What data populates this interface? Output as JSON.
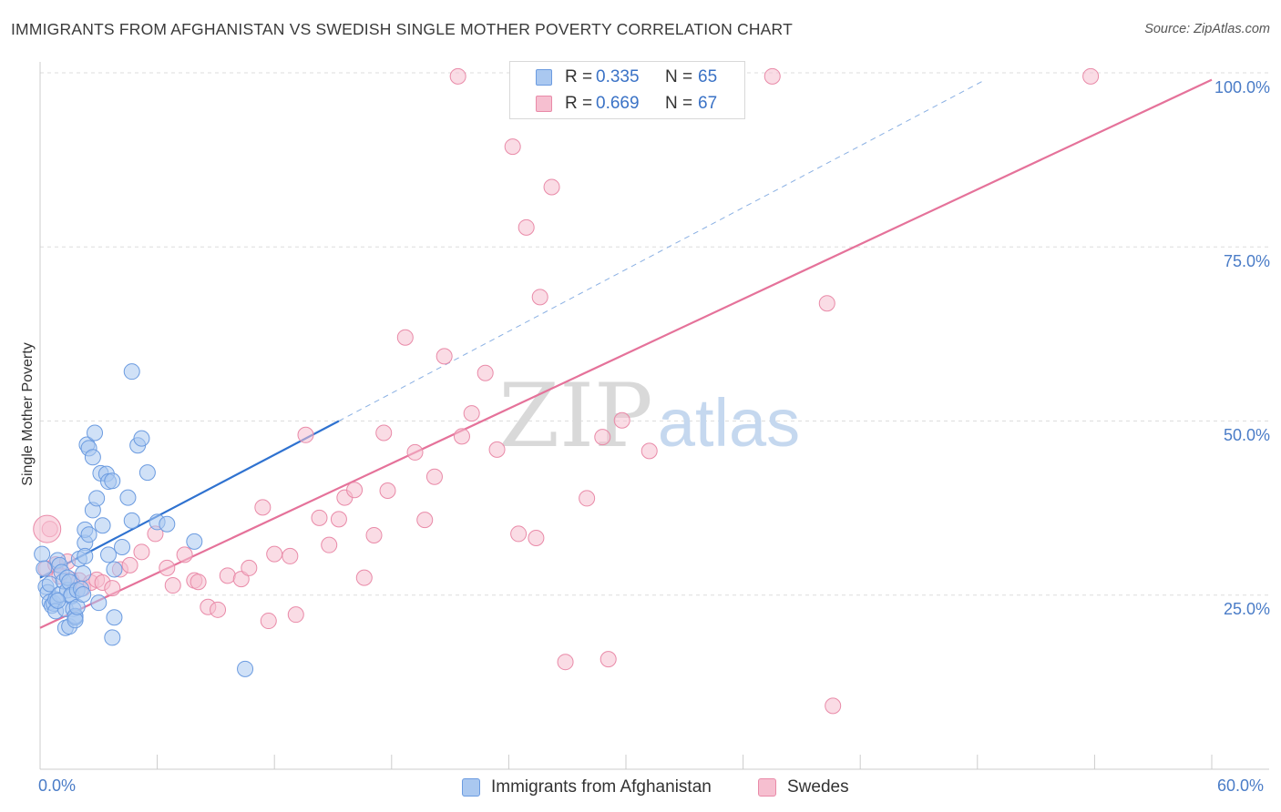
{
  "title": "IMMIGRANTS FROM AFGHANISTAN VS SWEDISH SINGLE MOTHER POVERTY CORRELATION CHART",
  "source": "Source: ZipAtlas.com",
  "watermark": {
    "zip": "ZIP",
    "atlas": "atlas"
  },
  "legend_top": [
    {
      "r_label": "R =",
      "r_value": "0.335",
      "n_label": "N =",
      "n_value": "65"
    },
    {
      "r_label": "R =",
      "r_value": "0.669",
      "n_label": "N =",
      "n_value": "67"
    }
  ],
  "legend_bottom": [
    {
      "label": "Immigrants from Afghanistan"
    },
    {
      "label": "Swedes"
    }
  ],
  "colors": {
    "blue_fill": "#aac8f0",
    "blue_stroke": "#6b9be0",
    "blue_line": "#2f72d0",
    "pink_fill": "#f6bfd0",
    "pink_stroke": "#e98aa8",
    "pink_line": "#e5729a",
    "grid": "#dddddd",
    "tick_text": "#4a7cc7"
  },
  "chart_data": {
    "type": "scatter",
    "title": "IMMIGRANTS FROM AFGHANISTAN VS SWEDISH SINGLE MOTHER POVERTY CORRELATION CHART",
    "xlabel": "",
    "ylabel": "Single Mother Poverty",
    "xlim": [
      0,
      60
    ],
    "ylim": [
      0,
      100
    ],
    "x_ticks": [
      {
        "value": 0,
        "label": "0.0%"
      },
      {
        "value": 60,
        "label": "60.0%"
      }
    ],
    "y_ticks": [
      {
        "value": 25,
        "label": "25.0%"
      },
      {
        "value": 50,
        "label": "50.0%"
      },
      {
        "value": 75,
        "label": "75.0%"
      },
      {
        "value": 100,
        "label": "100.0%"
      }
    ],
    "series": [
      {
        "name": "Immigrants from Afghanistan",
        "color": "#6b9be0",
        "r": 0.335,
        "n": 65,
        "trend": {
          "x0": 0,
          "y0": 27.5,
          "x1": 15.3,
          "y1": 50.0,
          "dash_to_x": 48.4,
          "dash_to_y": 99.0
        },
        "points": [
          [
            0.1,
            30.9
          ],
          [
            0.2,
            28.8
          ],
          [
            0.3,
            26.2
          ],
          [
            0.4,
            25.4
          ],
          [
            0.5,
            24.0
          ],
          [
            0.5,
            26.6
          ],
          [
            0.6,
            23.5
          ],
          [
            0.7,
            23.8
          ],
          [
            0.8,
            24.4
          ],
          [
            0.8,
            22.7
          ],
          [
            0.9,
            30.0
          ],
          [
            1.0,
            25.1
          ],
          [
            1.0,
            29.3
          ],
          [
            1.1,
            28.3
          ],
          [
            1.2,
            27.0
          ],
          [
            1.3,
            20.3
          ],
          [
            1.3,
            23.0
          ],
          [
            1.4,
            25.7
          ],
          [
            1.4,
            27.5
          ],
          [
            1.5,
            26.9
          ],
          [
            1.5,
            20.5
          ],
          [
            1.6,
            24.8
          ],
          [
            1.6,
            25.0
          ],
          [
            1.7,
            23.0
          ],
          [
            1.8,
            21.8
          ],
          [
            1.8,
            22.0
          ],
          [
            1.8,
            21.4
          ],
          [
            1.9,
            23.3
          ],
          [
            1.9,
            25.7
          ],
          [
            2.0,
            30.2
          ],
          [
            2.1,
            25.9
          ],
          [
            2.2,
            25.1
          ],
          [
            2.2,
            28.1
          ],
          [
            2.3,
            32.5
          ],
          [
            2.3,
            34.4
          ],
          [
            2.3,
            30.6
          ],
          [
            2.4,
            46.6
          ],
          [
            2.5,
            46.1
          ],
          [
            2.5,
            33.7
          ],
          [
            2.7,
            37.2
          ],
          [
            2.7,
            44.8
          ],
          [
            2.8,
            48.3
          ],
          [
            2.9,
            38.9
          ],
          [
            3.0,
            23.9
          ],
          [
            3.1,
            42.5
          ],
          [
            3.2,
            35.0
          ],
          [
            3.4,
            42.4
          ],
          [
            3.5,
            41.3
          ],
          [
            3.5,
            30.8
          ],
          [
            3.7,
            41.4
          ],
          [
            3.7,
            18.9
          ],
          [
            3.8,
            21.8
          ],
          [
            3.8,
            28.7
          ],
          [
            4.2,
            31.9
          ],
          [
            4.5,
            39.0
          ],
          [
            4.7,
            35.7
          ],
          [
            4.7,
            57.1
          ],
          [
            5.0,
            46.5
          ],
          [
            5.2,
            47.5
          ],
          [
            5.5,
            42.6
          ],
          [
            6.0,
            35.5
          ],
          [
            6.5,
            35.2
          ],
          [
            7.9,
            32.7
          ],
          [
            10.5,
            14.4
          ],
          [
            0.9,
            24.2
          ]
        ]
      },
      {
        "name": "Swedes",
        "color": "#e98aa8",
        "r": 0.669,
        "n": 67,
        "trend": {
          "x0": 0,
          "y0": 20.3,
          "x1": 60,
          "y1": 99.0
        },
        "points": [
          [
            0.3,
            28.8
          ],
          [
            0.5,
            34.5
          ],
          [
            0.8,
            29.4
          ],
          [
            1.0,
            27.7
          ],
          [
            1.4,
            29.8
          ],
          [
            1.6,
            27.2
          ],
          [
            2.0,
            27.1
          ],
          [
            2.2,
            26.0
          ],
          [
            2.6,
            26.8
          ],
          [
            2.9,
            27.2
          ],
          [
            3.2,
            26.8
          ],
          [
            3.7,
            26.0
          ],
          [
            4.1,
            28.7
          ],
          [
            4.6,
            29.3
          ],
          [
            5.2,
            31.2
          ],
          [
            5.9,
            33.8
          ],
          [
            6.5,
            28.9
          ],
          [
            6.8,
            26.4
          ],
          [
            7.4,
            30.8
          ],
          [
            7.9,
            27.1
          ],
          [
            8.1,
            26.9
          ],
          [
            8.6,
            23.3
          ],
          [
            9.1,
            22.9
          ],
          [
            9.6,
            27.8
          ],
          [
            10.3,
            27.3
          ],
          [
            10.7,
            28.9
          ],
          [
            11.4,
            37.6
          ],
          [
            11.7,
            21.3
          ],
          [
            12.0,
            30.9
          ],
          [
            12.8,
            30.6
          ],
          [
            13.1,
            22.2
          ],
          [
            13.6,
            48.0
          ],
          [
            14.3,
            36.1
          ],
          [
            14.8,
            32.2
          ],
          [
            15.3,
            35.9
          ],
          [
            15.6,
            39.0
          ],
          [
            16.1,
            40.1
          ],
          [
            16.6,
            27.5
          ],
          [
            17.1,
            33.6
          ],
          [
            17.6,
            48.3
          ],
          [
            17.8,
            40.0
          ],
          [
            18.7,
            62.0
          ],
          [
            19.2,
            45.5
          ],
          [
            19.7,
            35.8
          ],
          [
            20.2,
            42.0
          ],
          [
            20.7,
            59.3
          ],
          [
            21.6,
            47.8
          ],
          [
            22.1,
            51.1
          ],
          [
            22.8,
            56.9
          ],
          [
            23.4,
            45.9
          ],
          [
            24.2,
            89.4
          ],
          [
            24.5,
            33.8
          ],
          [
            24.9,
            77.8
          ],
          [
            25.4,
            33.2
          ],
          [
            25.6,
            67.8
          ],
          [
            26.2,
            83.6
          ],
          [
            26.9,
            15.4
          ],
          [
            28.0,
            38.9
          ],
          [
            28.8,
            47.7
          ],
          [
            29.1,
            15.8
          ],
          [
            29.8,
            50.1
          ],
          [
            31.2,
            45.7
          ],
          [
            40.3,
            66.9
          ],
          [
            40.6,
            9.1
          ],
          [
            21.4,
            99.5
          ],
          [
            37.5,
            99.5
          ],
          [
            53.8,
            99.5
          ]
        ]
      }
    ]
  },
  "hidden_points_note_free": null
}
